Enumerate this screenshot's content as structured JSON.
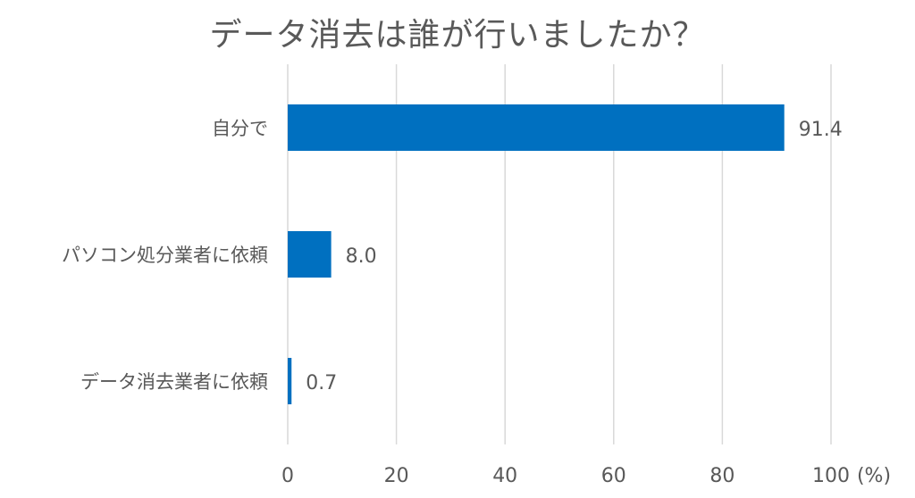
{
  "chart_data": {
    "type": "bar",
    "orientation": "horizontal",
    "title": "データ消去は誰が行いましたか？",
    "categories": [
      "自分で",
      "パソコン処分業者に依頼",
      "データ消去業者に依頼"
    ],
    "values": [
      91.4,
      8.0,
      0.7
    ],
    "value_labels": [
      "91.4",
      "8.0",
      "0.7"
    ],
    "xlim": [
      0,
      100
    ],
    "x_ticks": [
      0,
      20,
      40,
      60,
      80,
      100
    ],
    "x_unit_label": "(%)",
    "grid": "vertical",
    "legend": "none",
    "bar_color": "#0070C0",
    "grid_color": "#D9D9D9",
    "text_color": "#595959"
  }
}
